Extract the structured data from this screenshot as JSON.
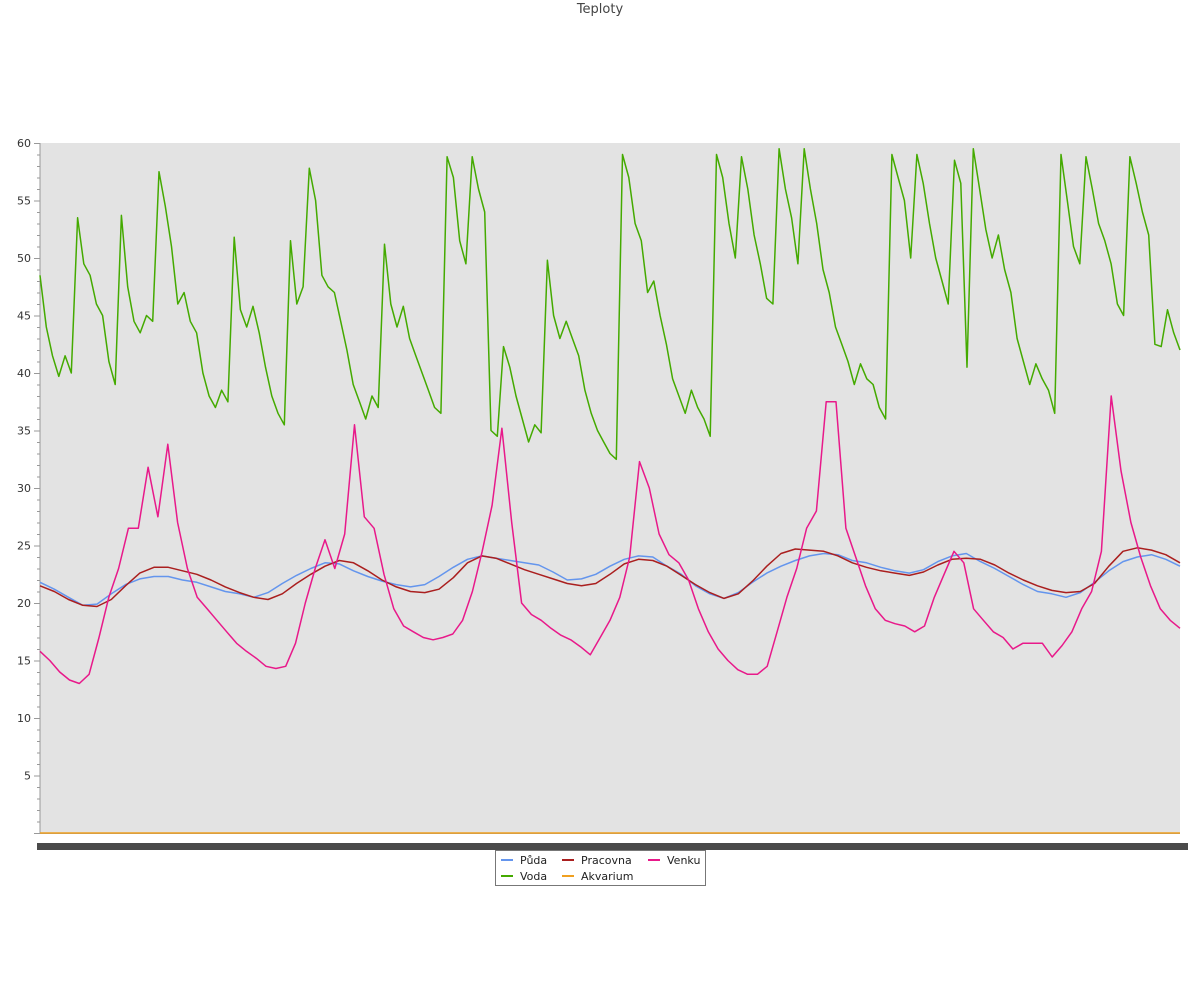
{
  "chart_data": {
    "type": "line",
    "title": "Teploty",
    "xlabel": "",
    "ylabel": "",
    "ylim": [
      0,
      60
    ],
    "yticks": [
      5,
      10,
      15,
      20,
      25,
      30,
      35,
      40,
      45,
      50,
      55,
      60
    ],
    "grid": false,
    "legend_position": "bottom-center",
    "background": "#e3e3e3",
    "series": [
      {
        "name": "Půda",
        "color": "#6495ed",
        "values": [
          21.8,
          21.2,
          20.5,
          19.8,
          19.9,
          20.8,
          21.6,
          22.1,
          22.3,
          22.3,
          22.0,
          21.8,
          21.4,
          21.0,
          20.8,
          20.5,
          20.9,
          21.7,
          22.4,
          23.0,
          23.5,
          23.4,
          22.8,
          22.3,
          21.9,
          21.6,
          21.4,
          21.6,
          22.3,
          23.1,
          23.8,
          24.1,
          23.9,
          23.7,
          23.5,
          23.3,
          22.7,
          22.0,
          22.1,
          22.5,
          23.2,
          23.8,
          24.1,
          24.0,
          23.2,
          22.5,
          21.5,
          20.8,
          20.4,
          20.9,
          21.8,
          22.6,
          23.2,
          23.7,
          24.1,
          24.3,
          24.2,
          23.7,
          23.5,
          23.1,
          22.8,
          22.6,
          22.9,
          23.6,
          24.1,
          24.3,
          23.6,
          23.0,
          22.3,
          21.6,
          21.0,
          20.8,
          20.5,
          20.9,
          21.8,
          22.8,
          23.6,
          24.0,
          24.2,
          23.8,
          23.2
        ]
      },
      {
        "name": "Voda",
        "color": "#44aa00",
        "values": [
          48.5,
          44.0,
          41.5,
          39.7,
          41.5,
          40.0,
          53.5,
          49.5,
          48.5,
          46.0,
          45.0,
          41.0,
          39.0,
          53.7,
          47.5,
          44.5,
          43.5,
          45.0,
          44.5,
          57.5,
          54.5,
          51.0,
          46.0,
          47.0,
          44.5,
          43.5,
          40.0,
          38.0,
          37.0,
          38.5,
          37.5,
          51.8,
          45.5,
          44.0,
          45.8,
          43.5,
          40.5,
          38.0,
          36.5,
          35.5,
          51.5,
          46.0,
          47.5,
          57.8,
          55.0,
          48.5,
          47.5,
          47.0,
          44.5,
          42.0,
          39.0,
          37.5,
          36.0,
          38.0,
          37.0,
          51.2,
          46.0,
          44.0,
          45.8,
          43.0,
          41.5,
          40.0,
          38.5,
          37.0,
          36.5,
          58.8,
          57.0,
          51.5,
          49.5,
          58.8,
          56.0,
          54.0,
          35.0,
          34.5,
          42.3,
          40.5,
          38.0,
          36.0,
          34.0,
          35.5,
          34.8,
          49.8,
          45.0,
          43.0,
          44.5,
          43.0,
          41.5,
          38.5,
          36.5,
          35.0,
          34.0,
          33.0,
          32.5,
          59.0,
          57.0,
          53.0,
          51.5,
          47.0,
          48.0,
          45.0,
          42.5,
          39.5,
          38.0,
          36.5,
          38.5,
          37.0,
          36.0,
          34.5,
          59.0,
          57.0,
          53.0,
          50.0,
          58.8,
          56.0,
          52.0,
          49.5,
          46.5,
          46.0,
          59.5,
          56.0,
          53.5,
          49.5,
          59.5,
          56.0,
          53.0,
          49.0,
          47.0,
          44.0,
          42.5,
          41.0,
          39.0,
          40.8,
          39.5,
          39.0,
          37.0,
          36.0,
          59.0,
          57.0,
          55.0,
          50.0,
          59.0,
          56.5,
          53.0,
          50.0,
          48.0,
          46.0,
          58.5,
          56.5,
          40.5,
          59.5,
          56.0,
          52.5,
          50.0,
          52.0,
          49.0,
          47.0,
          43.0,
          41.0,
          39.0,
          40.8,
          39.5,
          38.5,
          36.5,
          59.0,
          55.0,
          51.0,
          49.5,
          58.8,
          56.0,
          53.0,
          51.5,
          49.5,
          46.0,
          45.0,
          58.8,
          56.5,
          54.0,
          52.0,
          42.5,
          42.3,
          45.5,
          43.5,
          42.0
        ]
      },
      {
        "name": "Pracovna",
        "color": "#aa1f1f",
        "values": [
          21.5,
          21.0,
          20.3,
          19.8,
          19.7,
          20.3,
          21.5,
          22.6,
          23.1,
          23.1,
          22.8,
          22.5,
          22.0,
          21.4,
          20.9,
          20.5,
          20.3,
          20.8,
          21.7,
          22.5,
          23.2,
          23.7,
          23.5,
          22.8,
          22.0,
          21.4,
          21.0,
          20.9,
          21.2,
          22.2,
          23.5,
          24.1,
          23.9,
          23.4,
          22.9,
          22.5,
          22.1,
          21.7,
          21.5,
          21.7,
          22.5,
          23.4,
          23.8,
          23.7,
          23.2,
          22.4,
          21.6,
          20.9,
          20.4,
          20.8,
          21.9,
          23.2,
          24.3,
          24.7,
          24.6,
          24.5,
          24.1,
          23.5,
          23.1,
          22.8,
          22.6,
          22.4,
          22.7,
          23.3,
          23.8,
          23.9,
          23.8,
          23.3,
          22.6,
          22.0,
          21.5,
          21.1,
          20.9,
          21.0,
          21.7,
          23.2,
          24.5,
          24.8,
          24.6,
          24.2,
          23.5
        ]
      },
      {
        "name": "Akvarium",
        "color": "#f0a020",
        "values": [
          0,
          0,
          0,
          0,
          0,
          0,
          0,
          0,
          0,
          0,
          0,
          0,
          0,
          0,
          0,
          0,
          0,
          0,
          0,
          0,
          0,
          0,
          0,
          0,
          0,
          0,
          0,
          0,
          0,
          0,
          0,
          0,
          0,
          0,
          0,
          0,
          0,
          0,
          0,
          0,
          0
        ]
      },
      {
        "name": "Venku",
        "color": "#e8198a",
        "values": [
          15.8,
          15.0,
          14.0,
          13.3,
          13.0,
          13.8,
          17.0,
          20.5,
          23.0,
          26.5,
          26.5,
          31.8,
          27.5,
          33.8,
          27.0,
          23.0,
          20.5,
          19.5,
          18.5,
          17.5,
          16.5,
          15.8,
          15.2,
          14.5,
          14.3,
          14.5,
          16.5,
          20.0,
          23.0,
          25.5,
          23.0,
          26.0,
          35.5,
          27.5,
          26.5,
          22.5,
          19.5,
          18.0,
          17.5,
          17.0,
          16.8,
          17.0,
          17.3,
          18.5,
          21.0,
          24.5,
          28.5,
          35.2,
          27.0,
          20.0,
          19.0,
          18.5,
          17.8,
          17.2,
          16.8,
          16.2,
          15.5,
          17.0,
          18.5,
          20.5,
          24.0,
          32.3,
          30.0,
          26.0,
          24.2,
          23.5,
          22.0,
          19.5,
          17.5,
          16.0,
          15.0,
          14.2,
          13.8,
          13.8,
          14.5,
          17.5,
          20.5,
          23.0,
          26.5,
          28.0,
          37.5,
          37.5,
          26.5,
          24.0,
          21.5,
          19.5,
          18.5,
          18.2,
          18.0,
          17.5,
          18.0,
          20.5,
          22.5,
          24.5,
          23.5,
          19.5,
          18.5,
          17.5,
          17.0,
          16.0,
          16.5,
          16.5,
          16.5,
          15.3,
          16.3,
          17.5,
          19.5,
          21.0,
          24.5,
          38.0,
          31.5,
          27.0,
          24.0,
          21.5,
          19.5,
          18.5,
          17.8
        ]
      }
    ]
  }
}
